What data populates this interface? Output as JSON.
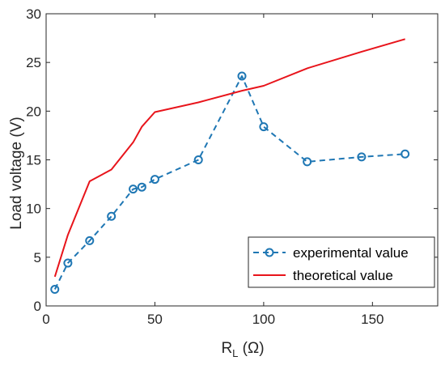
{
  "chart_data": {
    "type": "line",
    "xlabel": "R",
    "xlabel_sub": "L",
    "xlabel_unit": " (Ω)",
    "ylabel": "Load voltage (V)",
    "xlim": [
      0,
      180
    ],
    "ylim": [
      0,
      30
    ],
    "xticks": [
      0,
      50,
      100,
      150
    ],
    "yticks": [
      0,
      5,
      10,
      15,
      20,
      25,
      30
    ],
    "grid": false,
    "legend_position": "bottom-right",
    "series": [
      {
        "name": "experimental value",
        "style": "dashed-circle-markers",
        "color": "#1f77b4",
        "x": [
          4,
          10,
          20,
          30,
          40,
          44,
          50,
          70,
          90,
          100,
          120,
          145,
          165
        ],
        "y": [
          1.7,
          4.4,
          6.7,
          9.2,
          12.0,
          12.2,
          13.0,
          15.0,
          23.6,
          18.4,
          14.8,
          15.3,
          15.6
        ]
      },
      {
        "name": "theoretical value",
        "style": "solid",
        "color": "#e8141b",
        "x": [
          4,
          10,
          20,
          30,
          40,
          44,
          50,
          70,
          90,
          100,
          120,
          145,
          165
        ],
        "y": [
          3.0,
          7.3,
          12.8,
          14.0,
          16.8,
          18.4,
          19.9,
          20.9,
          22.1,
          22.6,
          24.4,
          26.1,
          27.4
        ]
      }
    ]
  }
}
